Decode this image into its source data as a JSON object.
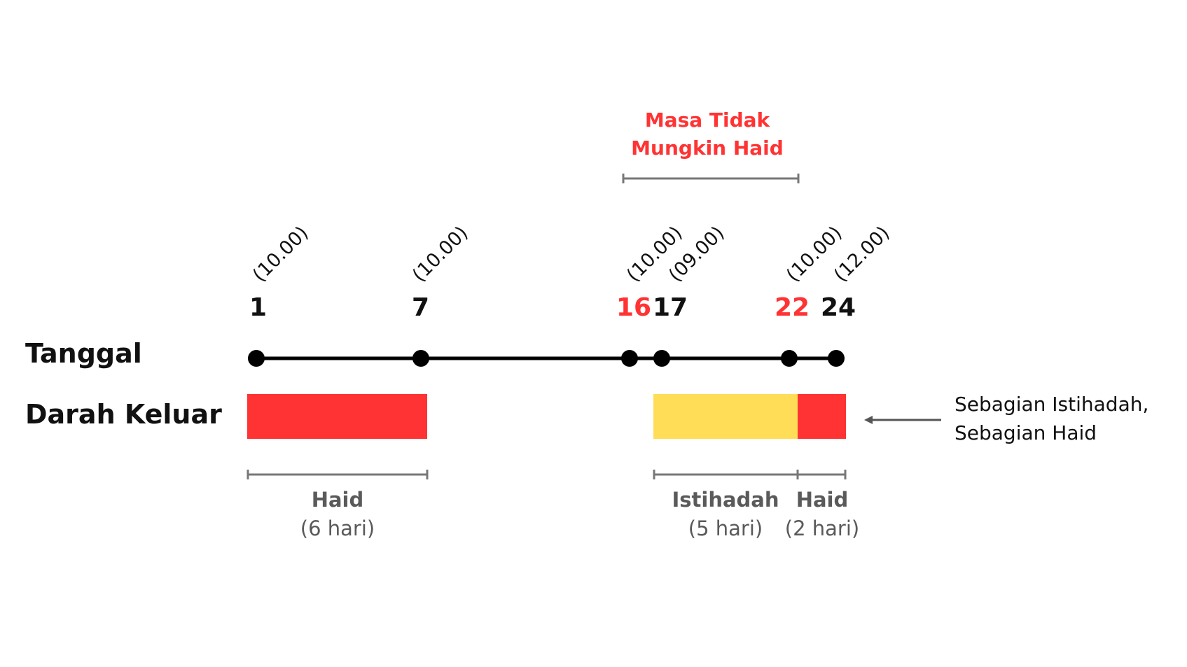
{
  "colors": {
    "haid": "#ff3333",
    "istihadah": "#ffdd57",
    "axis": "#000000",
    "bracket": "#777777",
    "label_gray": "#5a5a5a",
    "accent_red": "#ff3333",
    "text": "#111111"
  },
  "row_labels": {
    "tanggal": "Tanggal",
    "darah_keluar": "Darah Keluar"
  },
  "masa_tidak_mungkin_haid": {
    "line1": "Masa Tidak",
    "line2": "Mungkin Haid"
  },
  "dates": [
    {
      "day": "1",
      "time": "(10.00)",
      "highlight": false
    },
    {
      "day": "7",
      "time": "(10.00)",
      "highlight": false
    },
    {
      "day": "16",
      "time": "(10.00)",
      "highlight": true
    },
    {
      "day": "17",
      "time": "(09.00)",
      "highlight": false
    },
    {
      "day": "22",
      "time": "(10.00)",
      "highlight": true
    },
    {
      "day": "24",
      "time": "(12.00)",
      "highlight": false
    }
  ],
  "spans": [
    {
      "title": "Haid",
      "duration": "(6 hari)"
    },
    {
      "title": "Istihadah",
      "duration": "(5 hari)"
    },
    {
      "title": "Haid",
      "duration": "(2 hari)"
    }
  ],
  "note": {
    "line1": "Sebagian Istihadah,",
    "line2": "Sebagian Haid"
  }
}
